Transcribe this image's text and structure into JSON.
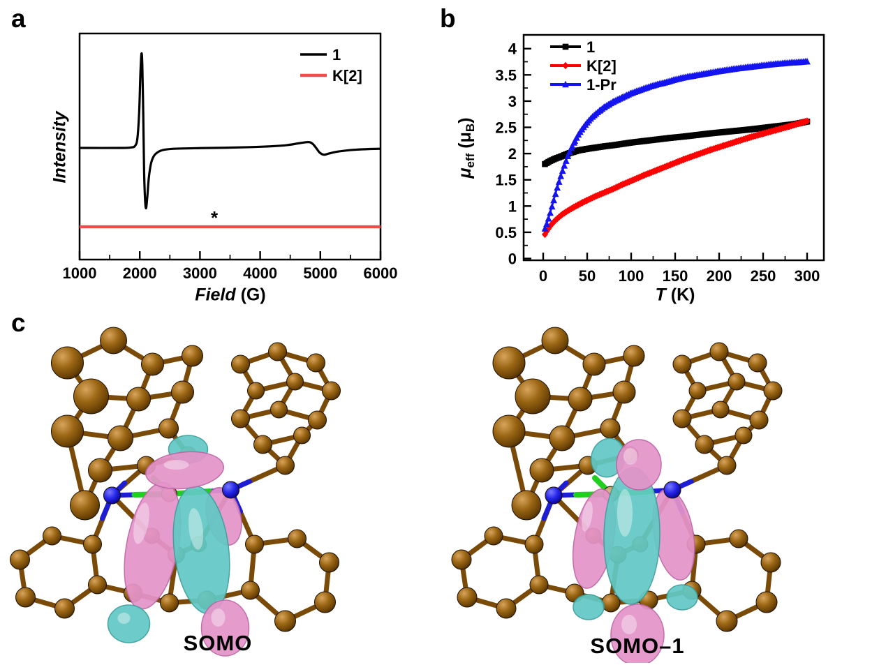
{
  "panels": {
    "a_label": "a",
    "b_label": "b",
    "c_label": "c"
  },
  "colors": {
    "black": "#000000",
    "epr_red": "#f24b4b",
    "chi_red": "#fe0000",
    "chi_blue": "#1414f0",
    "bond_blue": "#1d1dd6",
    "bond_green": "#21cf21",
    "atom_brown": "#8a5a12",
    "atom_blue": "#2525e8",
    "metal_tan": "#b98a52",
    "lobe_pink": "#e594ca",
    "lobe_pink_edge": "#bd64a4",
    "lobe_cyan": "#62c9c5",
    "lobe_cyan_edge": "#3a9e9b"
  },
  "panel_a": {
    "ylabel": "Intensity",
    "xlabel_italic": "Field",
    "xlabel_rest": " (G)"
  },
  "panel_b": {
    "ylabel_mu": "μ",
    "ylabel_sub": "eff",
    "ylabel_mid": " (μ",
    "ylabel_sub2": "B",
    "ylabel_end": ")",
    "xlabel_italic": "T",
    "xlabel_rest": " (K)"
  },
  "panel_c": {
    "molecules": [
      {
        "label": "SOMO"
      },
      {
        "label": "SOMO–1"
      }
    ]
  },
  "chart_data": [
    {
      "type": "line",
      "title": "EPR spectrum",
      "xlabel": "Field (G)",
      "ylabel": "Intensity",
      "xlim": [
        1000,
        6000
      ],
      "x_ticks": [
        1000,
        2000,
        3000,
        4000,
        5000,
        6000
      ],
      "x_minor_step": 500,
      "grid": false,
      "legend_position": "top-right",
      "annotation": {
        "text": "*",
        "x": 3240,
        "y": -0.837
      },
      "series": [
        {
          "name": "1",
          "color": "#000000",
          "width": 3.2,
          "points": [
            [
              1000,
              0
            ],
            [
              1700,
              0
            ],
            [
              1850,
              0.005
            ],
            [
              1920,
              0.02
            ],
            [
              1960,
              0.1
            ],
            [
              1990,
              0.38
            ],
            [
              2010,
              0.78
            ],
            [
              2028,
              1.0
            ],
            [
              2042,
              0.88
            ],
            [
              2058,
              0.35
            ],
            [
              2072,
              -0.25
            ],
            [
              2088,
              -0.55
            ],
            [
              2105,
              -0.64
            ],
            [
              2125,
              -0.52
            ],
            [
              2150,
              -0.32
            ],
            [
              2185,
              -0.17
            ],
            [
              2230,
              -0.09
            ],
            [
              2300,
              -0.045
            ],
            [
              2400,
              -0.02
            ],
            [
              2600,
              -0.008
            ],
            [
              3000,
              -0.002
            ],
            [
              3400,
              0.002
            ],
            [
              3800,
              0.008
            ],
            [
              4200,
              0.018
            ],
            [
              4450,
              0.03
            ],
            [
              4650,
              0.05
            ],
            [
              4800,
              0.062
            ],
            [
              4870,
              0.045
            ],
            [
              4930,
              0.0
            ],
            [
              4990,
              -0.05
            ],
            [
              5060,
              -0.072
            ],
            [
              5140,
              -0.06
            ],
            [
              5260,
              -0.042
            ],
            [
              5420,
              -0.028
            ],
            [
              5600,
              -0.018
            ],
            [
              5800,
              -0.012
            ],
            [
              6000,
              -0.009
            ]
          ]
        },
        {
          "name": "K[2]",
          "color": "#f24b4b",
          "width": 4.2,
          "points": [
            [
              1000,
              -0.837
            ],
            [
              6000,
              -0.837
            ]
          ]
        }
      ]
    },
    {
      "type": "scatter",
      "title": "Effective magnetic moment vs temperature",
      "xlabel": "T (K)",
      "ylabel": "μeff (μB)",
      "xlim": [
        0,
        300
      ],
      "ylim": [
        0,
        4
      ],
      "x_ticks": [
        0,
        50,
        100,
        150,
        200,
        250,
        300
      ],
      "y_ticks": [
        0,
        0.5,
        1,
        1.5,
        2,
        2.5,
        3,
        3.5,
        4
      ],
      "x_minor_step": 25,
      "y_minor_step": 0.25,
      "grid": false,
      "legend_position": "top-left",
      "series": [
        {
          "name": "1",
          "color": "#000000",
          "marker": "square",
          "points": [
            [
              2,
              1.8
            ],
            [
              4,
              1.82
            ],
            [
              6,
              1.84
            ],
            [
              8,
              1.86
            ],
            [
              10,
              1.875
            ],
            [
              14,
              1.905
            ],
            [
              18,
              1.93
            ],
            [
              22,
              1.955
            ],
            [
              26,
              1.985
            ],
            [
              30,
              2.01
            ],
            [
              35,
              2.035
            ],
            [
              40,
              2.06
            ],
            [
              45,
              2.075
            ],
            [
              50,
              2.09
            ],
            [
              60,
              2.115
            ],
            [
              70,
              2.14
            ],
            [
              80,
              2.16
            ],
            [
              90,
              2.185
            ],
            [
              100,
              2.21
            ],
            [
              115,
              2.24
            ],
            [
              130,
              2.27
            ],
            [
              145,
              2.3
            ],
            [
              160,
              2.325
            ],
            [
              175,
              2.355
            ],
            [
              190,
              2.385
            ],
            [
              205,
              2.41
            ],
            [
              220,
              2.435
            ],
            [
              235,
              2.46
            ],
            [
              250,
              2.49
            ],
            [
              265,
              2.52
            ],
            [
              280,
              2.55
            ],
            [
              290,
              2.575
            ],
            [
              300,
              2.61
            ]
          ]
        },
        {
          "name": "K[2]",
          "color": "#fe0000",
          "marker": "diamond",
          "points": [
            [
              2,
              0.46
            ],
            [
              4,
              0.52
            ],
            [
              6,
              0.57
            ],
            [
              8,
              0.62
            ],
            [
              10,
              0.66
            ],
            [
              14,
              0.73
            ],
            [
              18,
              0.79
            ],
            [
              22,
              0.845
            ],
            [
              26,
              0.89
            ],
            [
              30,
              0.93
            ],
            [
              35,
              0.98
            ],
            [
              40,
              1.025
            ],
            [
              45,
              1.07
            ],
            [
              50,
              1.11
            ],
            [
              60,
              1.19
            ],
            [
              70,
              1.26
            ],
            [
              80,
              1.33
            ],
            [
              90,
              1.41
            ],
            [
              100,
              1.48
            ],
            [
              115,
              1.59
            ],
            [
              130,
              1.69
            ],
            [
              145,
              1.79
            ],
            [
              160,
              1.89
            ],
            [
              175,
              1.98
            ],
            [
              190,
              2.07
            ],
            [
              205,
              2.15
            ],
            [
              220,
              2.23
            ],
            [
              235,
              2.31
            ],
            [
              250,
              2.38
            ],
            [
              265,
              2.45
            ],
            [
              280,
              2.52
            ],
            [
              290,
              2.57
            ],
            [
              300,
              2.62
            ]
          ]
        },
        {
          "name": "1-Pr",
          "color": "#1414f0",
          "marker": "triangle",
          "points": [
            [
              2,
              0.57
            ],
            [
              4,
              0.66
            ],
            [
              6,
              0.76
            ],
            [
              8,
              0.87
            ],
            [
              10,
              0.99
            ],
            [
              12,
              1.11
            ],
            [
              14,
              1.23
            ],
            [
              16,
              1.35
            ],
            [
              18,
              1.46
            ],
            [
              20,
              1.57
            ],
            [
              22,
              1.67
            ],
            [
              24,
              1.77
            ],
            [
              26,
              1.86
            ],
            [
              28,
              1.95
            ],
            [
              30,
              2.03
            ],
            [
              33,
              2.14
            ],
            [
              36,
              2.24
            ],
            [
              40,
              2.36
            ],
            [
              44,
              2.46
            ],
            [
              48,
              2.55
            ],
            [
              52,
              2.63
            ],
            [
              56,
              2.7
            ],
            [
              60,
              2.76
            ],
            [
              65,
              2.83
            ],
            [
              70,
              2.89
            ],
            [
              75,
              2.94
            ],
            [
              80,
              2.99
            ],
            [
              85,
              3.03
            ],
            [
              90,
              3.07
            ],
            [
              95,
              3.11
            ],
            [
              100,
              3.15
            ],
            [
              110,
              3.21
            ],
            [
              120,
              3.27
            ],
            [
              130,
              3.32
            ],
            [
              140,
              3.36
            ],
            [
              150,
              3.41
            ],
            [
              160,
              3.45
            ],
            [
              170,
              3.48
            ],
            [
              180,
              3.51
            ],
            [
              190,
              3.54
            ],
            [
              200,
              3.57
            ],
            [
              210,
              3.595
            ],
            [
              220,
              3.62
            ],
            [
              230,
              3.64
            ],
            [
              240,
              3.66
            ],
            [
              250,
              3.68
            ],
            [
              260,
              3.7
            ],
            [
              270,
              3.715
            ],
            [
              280,
              3.73
            ],
            [
              290,
              3.74
            ],
            [
              300,
              3.755
            ]
          ]
        }
      ]
    }
  ]
}
